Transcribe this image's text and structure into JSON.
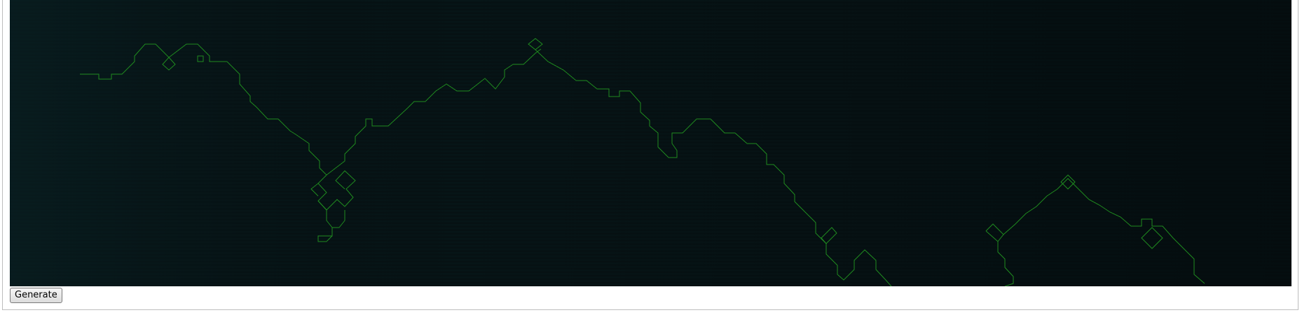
{
  "controls": {
    "generate_label": "Generate"
  },
  "colors": {
    "canvas_background": "#04090b",
    "scanline": "#0d3a3a",
    "path_stroke": "#1f8a1f",
    "button_text": "#000000"
  },
  "icons": []
}
